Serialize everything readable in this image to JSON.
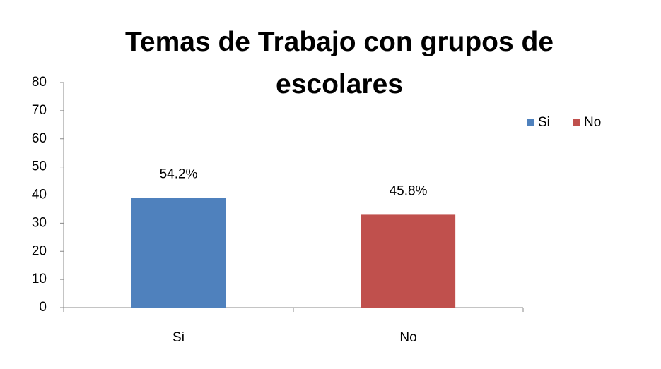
{
  "chart_data": {
    "type": "bar",
    "title": "Temas de Trabajo con grupos de escolares",
    "categories": [
      "Si",
      "No"
    ],
    "values": [
      39,
      33
    ],
    "value_labels": [
      "54.2%",
      "45.8%"
    ],
    "colors": [
      "#4f81bd",
      "#c0504d"
    ],
    "ylim": [
      0,
      80
    ],
    "yticks": [
      0,
      10,
      20,
      30,
      40,
      50,
      60,
      70,
      80
    ],
    "legend": "right"
  }
}
